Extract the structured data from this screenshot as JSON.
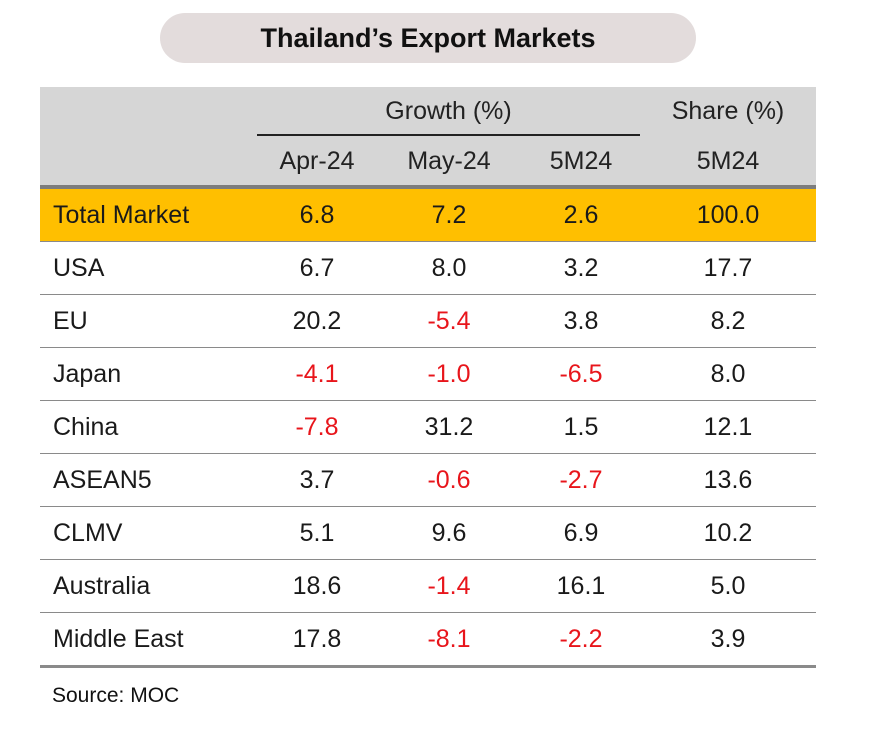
{
  "title": "Thailand’s Export Markets",
  "header": {
    "group_growth": "Growth (%)",
    "group_share": "Share (%)",
    "columns": [
      "Apr-24",
      "May-24",
      "5M24",
      "5M24"
    ]
  },
  "source": "Source: MOC",
  "colors": {
    "highlight": "#ffbf00",
    "header_bg": "#d6d6d6",
    "negative": "#e8151b",
    "title_bg": "#e3dcdc"
  },
  "chart_data": {
    "type": "table",
    "title": "Thailand’s Export Markets",
    "columns": [
      "Apr-24",
      "May-24",
      "5M24",
      "5M24"
    ],
    "column_groups": [
      {
        "name": "Growth (%)",
        "columns": [
          "Apr-24",
          "May-24",
          "5M24"
        ]
      },
      {
        "name": "Share (%)",
        "columns": [
          "5M24"
        ]
      }
    ],
    "rows": [
      {
        "label": "Total Market",
        "values": [
          "6.8",
          "7.2",
          "2.6",
          "100.0"
        ]
      },
      {
        "label": "USA",
        "values": [
          "6.7",
          "8.0",
          "3.2",
          "17.7"
        ]
      },
      {
        "label": "EU",
        "values": [
          "20.2",
          "-5.4",
          "3.8",
          "8.2"
        ]
      },
      {
        "label": "Japan",
        "values": [
          "-4.1",
          "-1.0",
          "-6.5",
          "8.0"
        ]
      },
      {
        "label": "China",
        "values": [
          "-7.8",
          "31.2",
          "1.5",
          "12.1"
        ]
      },
      {
        "label": "ASEAN5",
        "values": [
          "3.7",
          "-0.6",
          "-2.7",
          "13.6"
        ]
      },
      {
        "label": "CLMV",
        "values": [
          "5.1",
          "9.6",
          "6.9",
          "10.2"
        ]
      },
      {
        "label": "Australia",
        "values": [
          "18.6",
          "-1.4",
          "16.1",
          "5.0"
        ]
      },
      {
        "label": "Middle East",
        "values": [
          "17.8",
          "-8.1",
          "-2.2",
          "3.9"
        ]
      }
    ]
  }
}
